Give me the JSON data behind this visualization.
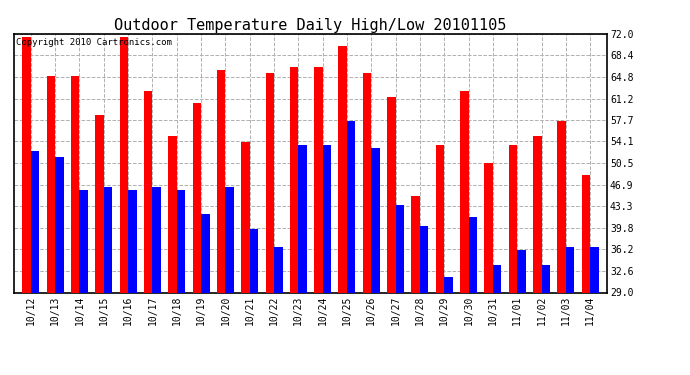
{
  "title": "Outdoor Temperature Daily High/Low 20101105",
  "copyright": "Copyright 2010 Cartronics.com",
  "categories": [
    "10/12",
    "10/13",
    "10/14",
    "10/15",
    "10/16",
    "10/17",
    "10/18",
    "10/19",
    "10/20",
    "10/21",
    "10/22",
    "10/23",
    "10/24",
    "10/25",
    "10/26",
    "10/27",
    "10/28",
    "10/29",
    "10/30",
    "10/31",
    "11/01",
    "11/02",
    "11/03",
    "11/04"
  ],
  "highs": [
    71.5,
    65.0,
    65.0,
    58.5,
    71.5,
    62.5,
    55.0,
    60.5,
    66.0,
    54.0,
    65.5,
    66.5,
    66.5,
    70.0,
    65.5,
    61.5,
    45.0,
    53.5,
    62.5,
    50.5,
    53.5,
    55.0,
    57.5,
    48.5
  ],
  "lows": [
    52.5,
    51.5,
    46.0,
    46.5,
    46.0,
    46.5,
    46.0,
    42.0,
    46.5,
    39.5,
    36.5,
    53.5,
    53.5,
    57.5,
    53.0,
    43.5,
    40.0,
    31.5,
    41.5,
    33.5,
    36.0,
    33.5,
    36.5,
    36.5
  ],
  "high_color": "#ff0000",
  "low_color": "#0000ff",
  "bg_color": "#ffffff",
  "plot_bg_color": "#ffffff",
  "grid_color": "#b0b0b0",
  "ylim_min": 29.0,
  "ylim_max": 72.0,
  "yticks": [
    29.0,
    32.6,
    36.2,
    39.8,
    43.3,
    46.9,
    50.5,
    54.1,
    57.7,
    61.2,
    64.8,
    68.4,
    72.0
  ],
  "title_fontsize": 11,
  "tick_fontsize": 7,
  "copyright_fontsize": 6.5,
  "bar_width": 0.35
}
